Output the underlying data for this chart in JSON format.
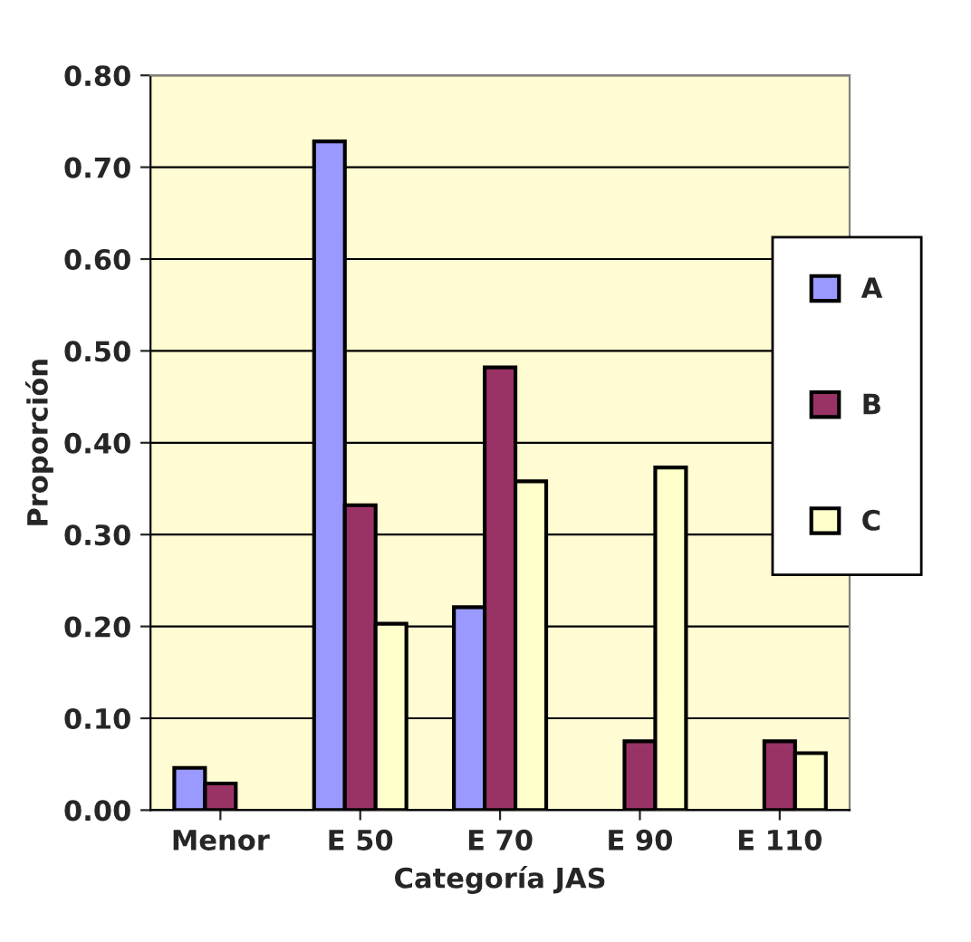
{
  "chart_data": {
    "type": "bar",
    "xlabel": "Categoría JAS",
    "ylabel": "Proporción",
    "categories": [
      "Menor",
      "E 50",
      "E 70",
      "E 90",
      "E 110"
    ],
    "series": [
      {
        "name": "A",
        "color": "#9999ff",
        "values": [
          0.046,
          0.728,
          0.221,
          null,
          null
        ]
      },
      {
        "name": "B",
        "color": "#993366",
        "values": [
          0.029,
          0.332,
          0.482,
          0.075,
          0.075
        ]
      },
      {
        "name": "C",
        "color": "#ffffcc",
        "values": [
          null,
          0.203,
          0.358,
          0.373,
          0.062
        ]
      }
    ],
    "ylim": [
      0,
      0.8
    ],
    "yticks": [
      {
        "value": 0,
        "label": "0.00"
      },
      {
        "value": 0.1,
        "label": "0.10"
      },
      {
        "value": 0.2,
        "label": "0.20"
      },
      {
        "value": 0.3,
        "label": "0.30"
      },
      {
        "value": 0.4,
        "label": "0.40"
      },
      {
        "value": 0.5,
        "label": "0.50"
      },
      {
        "value": 0.6,
        "label": "0.60"
      },
      {
        "value": 0.7,
        "label": "0.70"
      },
      {
        "value": 0.8,
        "label": "0.80"
      }
    ],
    "grid": "y",
    "legend": "right"
  }
}
